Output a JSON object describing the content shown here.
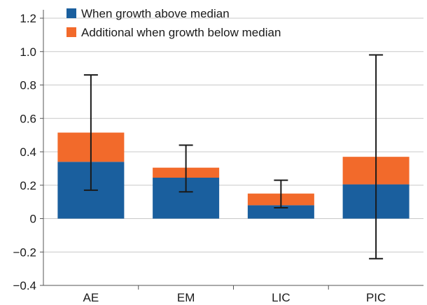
{
  "chart_data": {
    "type": "bar",
    "stacked": true,
    "categories": [
      "AE",
      "EM",
      "LIC",
      "PIC"
    ],
    "series": [
      {
        "name": "When growth above median",
        "values": [
          0.34,
          0.245,
          0.08,
          0.205
        ]
      },
      {
        "name": "Additional when growth below median",
        "values": [
          0.175,
          0.06,
          0.07,
          0.165
        ]
      }
    ],
    "error_bars": [
      {
        "low": 0.17,
        "high": 0.86
      },
      {
        "low": 0.16,
        "high": 0.44
      },
      {
        "low": 0.065,
        "high": 0.23
      },
      {
        "low": -0.24,
        "high": 0.98
      }
    ],
    "ylim": [
      -0.4,
      1.2
    ],
    "yticks": [
      1.2,
      1.0,
      0.8,
      0.6,
      0.4,
      0.2,
      0,
      -0.2,
      -0.4
    ],
    "ytick_labels": [
      "1.2",
      "1.0",
      "0.8",
      "0.6",
      "0.4",
      "0.2",
      "0",
      "−0.2",
      "−0.4"
    ],
    "grid": true,
    "legend_position": "top-left",
    "colors": [
      "#1a5f9e",
      "#f26a2b"
    ],
    "title": "",
    "xlabel": "",
    "ylabel": ""
  }
}
